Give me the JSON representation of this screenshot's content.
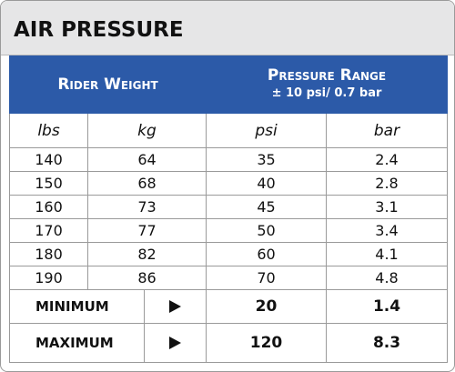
{
  "header": {
    "title": "AIR PRESSURE"
  },
  "table": {
    "group_headers": {
      "rider_weight": "Rider Weight",
      "pressure_range": "Pressure Range",
      "pressure_tolerance": "± 10 psi/ 0.7 bar"
    },
    "columns": [
      "lbs",
      "kg",
      "psi",
      "bar"
    ],
    "rows": [
      [
        140,
        64,
        35,
        2.4
      ],
      [
        150,
        68,
        40,
        2.8
      ],
      [
        160,
        73,
        45,
        3.1
      ],
      [
        170,
        77,
        50,
        3.4
      ],
      [
        180,
        82,
        60,
        4.1
      ],
      [
        190,
        86,
        70,
        4.8
      ]
    ],
    "limits": [
      {
        "label": "MINIMUM",
        "psi": 20,
        "bar": 1.4
      },
      {
        "label": "MAXIMUM",
        "psi": 120,
        "bar": 8.3
      }
    ]
  }
}
